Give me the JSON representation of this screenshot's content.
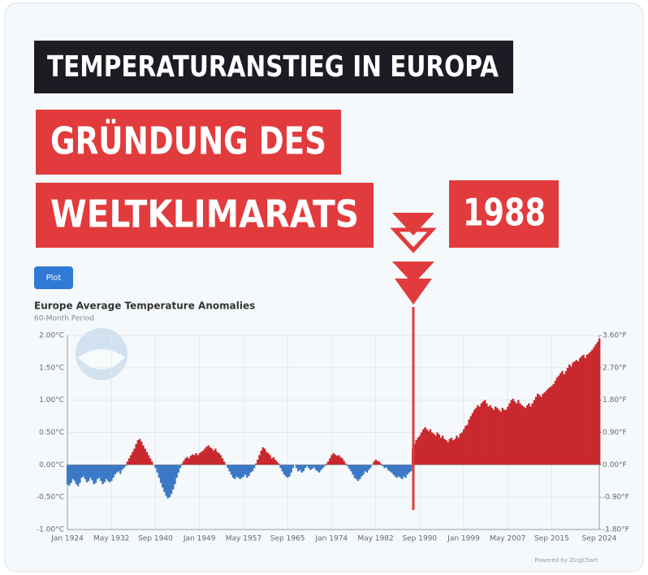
{
  "banners": {
    "headline": "TEMPERATURANSTIEG IN EUROPA",
    "line1": "GRÜNDUNG DES",
    "line2": "WELTKLIMARATS",
    "year": "1988"
  },
  "button": "Plot",
  "footer": "Powered by ZingChart",
  "chart_data": {
    "type": "bar",
    "title": "Europe Average Temperature Anomalies",
    "subtitle": "60-Month Period",
    "colors": {
      "positive": "#c8282e",
      "negative": "#3b79c6"
    },
    "categories": [
      "Jan 1924",
      null,
      null,
      null,
      null,
      null,
      null,
      null,
      null,
      null,
      null,
      null,
      null,
      null,
      null,
      null,
      null,
      null,
      null,
      null,
      null,
      null,
      null,
      null,
      null,
      "May 1932",
      null,
      null,
      null,
      null,
      null,
      null,
      null,
      null,
      null,
      null,
      null,
      null,
      null,
      null,
      null,
      null,
      null,
      null,
      null,
      null,
      null,
      null,
      null,
      null,
      "Sep 1940",
      null,
      null,
      null,
      null,
      null,
      null,
      null,
      null,
      null,
      null,
      null,
      null,
      null,
      null,
      null,
      null,
      null,
      null,
      null,
      null,
      null,
      null,
      null,
      null,
      "Jan 1949",
      null,
      null,
      null,
      null,
      null,
      null,
      null,
      null,
      null,
      null,
      null,
      null,
      null,
      null,
      null,
      null,
      null,
      null,
      null,
      null,
      null,
      null,
      null,
      null,
      "May 1957",
      null,
      null,
      null,
      null,
      null,
      null,
      null,
      null,
      null,
      null,
      null,
      null,
      null,
      null,
      null,
      null,
      null,
      null,
      null,
      null,
      null,
      null,
      null,
      null,
      "Sep 1965",
      null,
      null,
      null,
      null,
      null,
      null,
      null,
      null,
      null,
      null,
      null,
      null,
      null,
      null,
      null,
      null,
      null,
      null,
      null,
      null,
      null,
      null,
      null,
      null,
      "Jan 1974",
      null,
      null,
      null,
      null,
      null,
      null,
      null,
      null,
      null,
      null,
      null,
      null,
      null,
      null,
      null,
      null,
      null,
      null,
      null,
      null,
      null,
      null,
      null,
      null,
      "May 1982",
      null,
      null,
      null,
      null,
      null,
      null,
      null,
      null,
      null,
      null,
      null,
      null,
      null,
      null,
      null,
      null,
      null,
      null,
      null,
      null,
      null,
      null,
      null,
      null,
      "Sep 1990",
      null,
      null,
      null,
      null,
      null,
      null,
      null,
      null,
      null,
      null,
      null,
      null,
      null,
      null,
      null,
      null,
      null,
      null,
      null,
      null,
      null,
      null,
      null,
      null,
      "Jan 1999",
      null,
      null,
      null,
      null,
      null,
      null,
      null,
      null,
      null,
      null,
      null,
      null,
      null,
      null,
      null,
      null,
      null,
      null,
      null,
      null,
      null,
      null,
      null,
      null,
      "May 2007",
      null,
      null,
      null,
      null,
      null,
      null,
      null,
      null,
      null,
      null,
      null,
      null,
      null,
      null,
      null,
      null,
      null,
      null,
      null,
      null,
      null,
      null,
      null,
      null,
      "Sep 2015",
      null,
      null,
      null,
      null,
      null,
      null,
      null,
      null,
      null,
      null,
      null,
      null,
      null,
      null,
      null,
      null,
      null,
      null,
      null,
      null,
      null,
      null,
      null,
      null,
      null,
      null,
      "Sep 2024"
    ],
    "values": [
      -0.3,
      -0.32,
      -0.28,
      -0.22,
      -0.25,
      -0.3,
      -0.33,
      -0.28,
      -0.2,
      -0.18,
      -0.22,
      -0.27,
      -0.25,
      -0.2,
      -0.24,
      -0.3,
      -0.28,
      -0.22,
      -0.2,
      -0.25,
      -0.3,
      -0.27,
      -0.22,
      -0.25,
      -0.27,
      -0.25,
      -0.2,
      -0.15,
      -0.12,
      -0.1,
      -0.14,
      -0.08,
      -0.05,
      -0.02,
      0.05,
      0.1,
      0.15,
      0.2,
      0.25,
      0.32,
      0.38,
      0.4,
      0.36,
      0.3,
      0.25,
      0.2,
      0.15,
      0.1,
      0.05,
      0.0,
      -0.05,
      -0.12,
      -0.2,
      -0.28,
      -0.35,
      -0.42,
      -0.48,
      -0.52,
      -0.5,
      -0.45,
      -0.38,
      -0.3,
      -0.2,
      -0.12,
      -0.05,
      0.02,
      0.06,
      0.1,
      0.12,
      0.1,
      0.14,
      0.16,
      0.15,
      0.18,
      0.15,
      0.18,
      0.2,
      0.22,
      0.25,
      0.28,
      0.3,
      0.27,
      0.25,
      0.22,
      0.25,
      0.2,
      0.18,
      0.15,
      0.1,
      0.05,
      0.0,
      -0.05,
      -0.1,
      -0.15,
      -0.2,
      -0.22,
      -0.18,
      -0.2,
      -0.22,
      -0.2,
      -0.18,
      -0.15,
      -0.2,
      -0.17,
      -0.12,
      -0.1,
      -0.05,
      0.02,
      0.08,
      0.15,
      0.22,
      0.27,
      0.25,
      0.2,
      0.18,
      0.15,
      0.1,
      0.12,
      0.08,
      0.05,
      0.02,
      -0.05,
      -0.1,
      -0.15,
      -0.18,
      -0.2,
      -0.18,
      -0.12,
      -0.05,
      0.0,
      -0.05,
      -0.1,
      -0.08,
      -0.12,
      -0.1,
      -0.05,
      -0.02,
      -0.05,
      -0.08,
      -0.06,
      -0.04,
      -0.08,
      -0.1,
      -0.12,
      -0.08,
      -0.05,
      -0.02,
      0.02,
      0.05,
      0.1,
      0.15,
      0.18,
      0.16,
      0.14,
      0.15,
      0.12,
      0.1,
      0.06,
      0.02,
      -0.02,
      -0.06,
      -0.1,
      -0.15,
      -0.2,
      -0.22,
      -0.25,
      -0.22,
      -0.18,
      -0.15,
      -0.1,
      -0.12,
      -0.08,
      -0.05,
      0.0,
      0.05,
      0.08,
      0.06,
      0.05,
      0.02,
      -0.02,
      -0.05,
      -0.04,
      -0.08,
      -0.1,
      -0.12,
      -0.15,
      -0.18,
      -0.2,
      -0.18,
      -0.2,
      -0.22,
      -0.18,
      -0.2,
      -0.15,
      -0.12,
      -0.1,
      0.25,
      0.32,
      0.38,
      0.42,
      0.45,
      0.5,
      0.55,
      0.58,
      0.55,
      0.52,
      0.55,
      0.5,
      0.48,
      0.45,
      0.5,
      0.47,
      0.42,
      0.45,
      0.4,
      0.38,
      0.35,
      0.4,
      0.42,
      0.38,
      0.4,
      0.45,
      0.42,
      0.48,
      0.5,
      0.55,
      0.6,
      0.62,
      0.7,
      0.75,
      0.8,
      0.85,
      0.88,
      0.92,
      0.9,
      0.95,
      0.98,
      1.0,
      0.95,
      0.9,
      0.92,
      0.88,
      0.85,
      0.9,
      0.88,
      0.85,
      0.82,
      0.88,
      0.85,
      0.85,
      0.9,
      0.95,
      1.0,
      1.02,
      0.98,
      0.95,
      1.0,
      0.95,
      0.92,
      0.9,
      0.88,
      0.92,
      0.95,
      0.9,
      0.95,
      1.0,
      1.05,
      1.1,
      1.08,
      1.05,
      1.1,
      1.12,
      1.15,
      1.18,
      1.2,
      1.22,
      1.25,
      1.3,
      1.35,
      1.38,
      1.42,
      1.45,
      1.4,
      1.45,
      1.5,
      1.55,
      1.52,
      1.58,
      1.6,
      1.62,
      1.6,
      1.65,
      1.68,
      1.7,
      1.65,
      1.7,
      1.72,
      1.75,
      1.78,
      1.82,
      1.86,
      1.9,
      1.95
    ],
    "ylim": [
      -1.0,
      2.0
    ],
    "yticks": [
      {
        "value": -1.0,
        "label": "-1.00°C"
      },
      {
        "value": -0.5,
        "label": "-0.50°C"
      },
      {
        "value": 0.0,
        "label": "0.00°C"
      },
      {
        "value": 0.5,
        "label": "0.50°C"
      },
      {
        "value": 1.0,
        "label": "1.00°C"
      },
      {
        "value": 1.5,
        "label": "1.50°C"
      },
      {
        "value": 2.0,
        "label": "2.00°C"
      }
    ],
    "y2lim": [
      -1.8,
      3.6
    ],
    "y2ticks": [
      {
        "value": -1.8,
        "label": "-1.80°F"
      },
      {
        "value": -0.9,
        "label": "-0.90°F"
      },
      {
        "value": 0.0,
        "label": "0.00°F"
      },
      {
        "value": 0.9,
        "label": "0.90°F"
      },
      {
        "value": 1.8,
        "label": "1.80°F"
      },
      {
        "value": 2.7,
        "label": "2.70°F"
      },
      {
        "value": 3.6,
        "label": "3.60°F"
      }
    ],
    "grid": true
  }
}
